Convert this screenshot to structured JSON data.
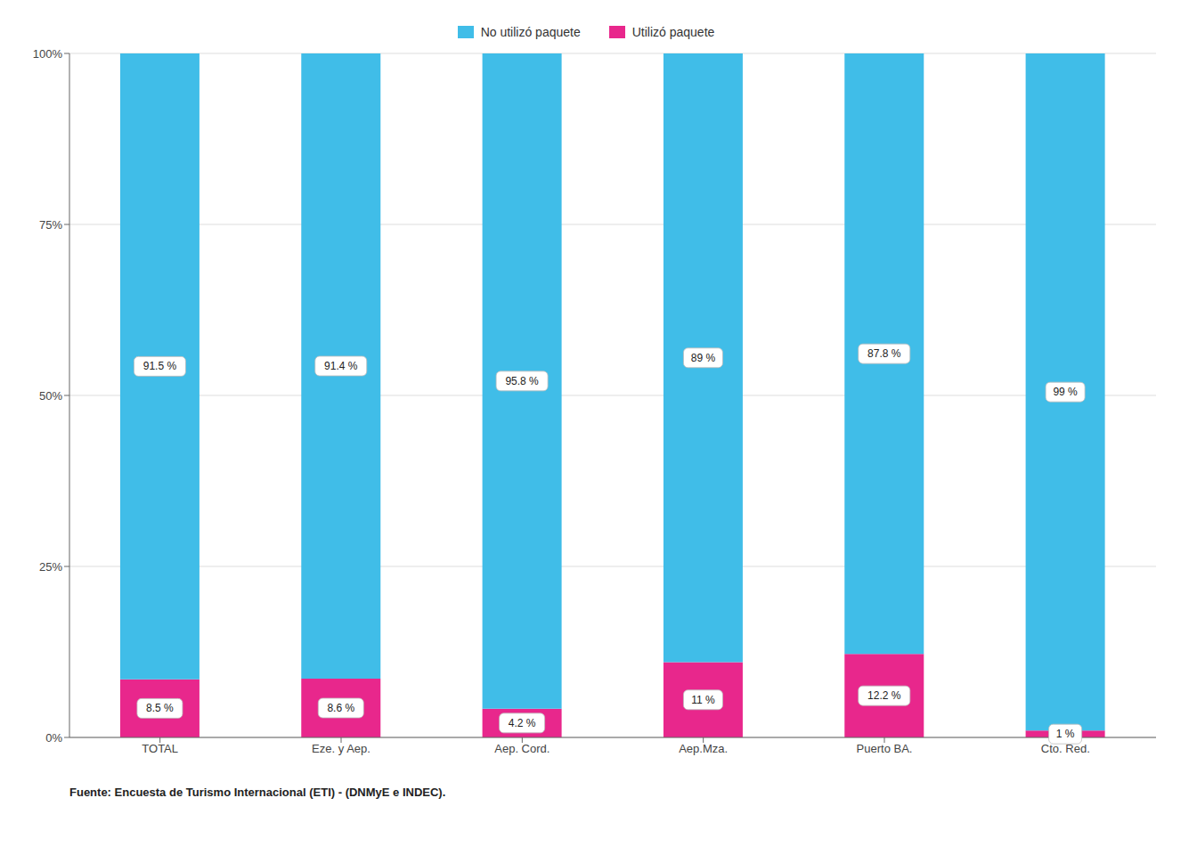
{
  "chart_data": {
    "type": "bar",
    "stacked": true,
    "categories": [
      "TOTAL",
      "Eze. y Aep.",
      "Aep. Cord.",
      "Aep.Mza.",
      "Puerto BA.",
      "Cto. Red."
    ],
    "series": [
      {
        "name": "Utilizó paquete",
        "color": "#E8278C",
        "values": [
          8.5,
          8.6,
          4.2,
          11.0,
          12.2,
          1.0
        ],
        "value_labels": [
          "8.5 %",
          "8.6 %",
          "4.2 %",
          "11 %",
          "12.2 %",
          "1 %"
        ]
      },
      {
        "name": "No utilizó paquete",
        "color": "#40BDE8",
        "values": [
          91.5,
          91.4,
          95.8,
          89.0,
          87.8,
          99.0
        ],
        "value_labels": [
          "91.5 %",
          "91.4 %",
          "95.8 %",
          "89 %",
          "87.8 %",
          "99 %"
        ]
      }
    ],
    "ylim": [
      0,
      100
    ],
    "yticks": [
      {
        "value": 0,
        "label": "0%"
      },
      {
        "value": 25,
        "label": "25%"
      },
      {
        "value": 50,
        "label": "50%"
      },
      {
        "value": 75,
        "label": "75%"
      },
      {
        "value": 100,
        "label": "100%"
      }
    ],
    "grid": true,
    "legend": "top",
    "data_labels": true,
    "annotations": [
      "Fuente: Encuesta de Turismo Internacional (ETI) - (DNMyE e INDEC)."
    ]
  }
}
